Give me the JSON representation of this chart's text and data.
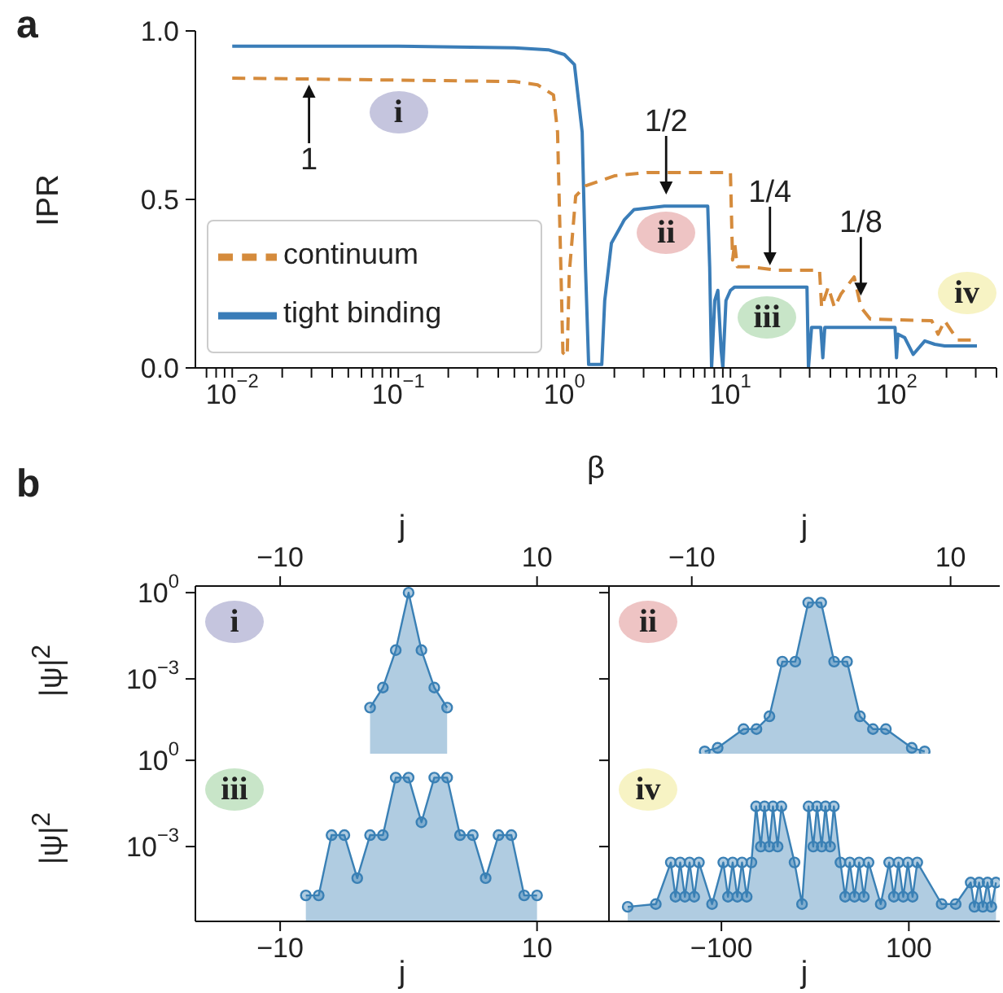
{
  "chart_data": [
    {
      "type": "line",
      "title": "a",
      "xlabel": "β",
      "ylabel": "IPR",
      "log": "x",
      "xlim": [
        0.006,
        400
      ],
      "xticks": [
        {
          "value": 0.007,
          "label": null
        },
        {
          "value": 0.008,
          "label": null
        },
        {
          "value": 0.009,
          "label": null
        },
        {
          "value": 0.01,
          "label": "10$^{−2}$"
        },
        {
          "value": 0.02,
          "label": null
        },
        {
          "value": 0.03,
          "label": null
        },
        {
          "value": 0.04,
          "label": null
        },
        {
          "value": 0.05,
          "label": null
        },
        {
          "value": 0.06,
          "label": null
        },
        {
          "value": 0.07,
          "label": null
        },
        {
          "value": 0.08,
          "label": null
        },
        {
          "value": 0.09,
          "label": null
        },
        {
          "value": 0.1,
          "label": "10$^{−1}$"
        },
        {
          "value": 0.2,
          "label": null
        },
        {
          "value": 0.3,
          "label": null
        },
        {
          "value": 0.4,
          "label": null
        },
        {
          "value": 0.5,
          "label": null
        },
        {
          "value": 0.6,
          "label": null
        },
        {
          "value": 0.7,
          "label": null
        },
        {
          "value": 0.8,
          "label": null
        },
        {
          "value": 0.9,
          "label": null
        },
        {
          "value": 1,
          "label": "10$^{0}$"
        },
        {
          "value": 2,
          "label": null
        },
        {
          "value": 3,
          "label": null
        },
        {
          "value": 4,
          "label": null
        },
        {
          "value": 5,
          "label": null
        },
        {
          "value": 6,
          "label": null
        },
        {
          "value": 7,
          "label": null
        },
        {
          "value": 8,
          "label": null
        },
        {
          "value": 9,
          "label": null
        },
        {
          "value": 10,
          "label": "10$^{1}$"
        },
        {
          "value": 20,
          "label": null
        },
        {
          "value": 30,
          "label": null
        },
        {
          "value": 40,
          "label": null
        },
        {
          "value": 50,
          "label": null
        },
        {
          "value": 60,
          "label": null
        },
        {
          "value": 70,
          "label": null
        },
        {
          "value": 80,
          "label": null
        },
        {
          "value": 90,
          "label": null
        },
        {
          "value": 100,
          "label": "10$^{2}$"
        },
        {
          "value": 200,
          "label": null
        },
        {
          "value": 300,
          "label": null
        },
        {
          "value": 400,
          "label": null
        }
      ],
      "ylim": [
        0,
        1
      ],
      "yticks": [
        {
          "value": 0,
          "label": "0.0"
        },
        {
          "value": 0.5,
          "label": "0.5"
        },
        {
          "value": 1,
          "label": "1.0"
        }
      ],
      "legend": "bottom left",
      "series": [
        {
          "name": "tight binding",
          "color": "#3a7db8",
          "line_style": "solid",
          "x": [
            0.01,
            0.1,
            0.5,
            0.8,
            1.0,
            1.15,
            1.28,
            1.34,
            1.4,
            1.68,
            1.75,
            1.92,
            2.3,
            2.63,
            4,
            7.3,
            7.5,
            7.7,
            8.05,
            8.4,
            8.8,
            9.0,
            9.4,
            10.0,
            10.6,
            20,
            28.9,
            29.5,
            30.8,
            35,
            36,
            37,
            60,
            98,
            100,
            102,
            112,
            126,
            148,
            170,
            195,
            305
          ],
          "values": [
            0.955,
            0.955,
            0.95,
            0.944,
            0.93,
            0.9,
            0.7,
            0.3,
            0.01,
            0.01,
            0.2,
            0.37,
            0.44,
            0.47,
            0.48,
            0.48,
            0.3,
            0,
            0.2,
            0.23,
            0.05,
            0,
            0.2,
            0.23,
            0.24,
            0.24,
            0.24,
            0,
            0.12,
            0.12,
            0.03,
            0.12,
            0.12,
            0.12,
            0.03,
            0.1,
            0.09,
            0.04,
            0.08,
            0.07,
            0.065,
            0.065
          ]
        },
        {
          "name": "continuum",
          "color": "#d58b3c",
          "line_style": "dashed",
          "x": [
            0.01,
            0.5,
            0.69,
            0.86,
            0.91,
            0.95,
            0.98,
            1.04,
            1.07,
            1.17,
            1.34,
            2.0,
            3.15,
            10,
            10.3,
            10.6,
            11,
            13.2,
            18.9,
            34.4,
            35.4,
            38.8,
            42.3,
            46.4,
            55.6,
            61,
            69.5,
            163,
            178,
            195,
            233,
            305
          ],
          "values": [
            0.86,
            0.85,
            0.84,
            0.81,
            0.7,
            0.32,
            0.045,
            0.035,
            0.28,
            0.51,
            0.54,
            0.57,
            0.58,
            0.58,
            0.32,
            0.37,
            0.3,
            0.3,
            0.29,
            0.29,
            0.18,
            0.24,
            0.18,
            0.22,
            0.27,
            0.18,
            0.145,
            0.14,
            0.1,
            0.14,
            0.083,
            0.083
          ]
        }
      ],
      "annotations": [
        {
          "text": "1",
          "x": 0.029,
          "y": 0.86
        },
        {
          "text": "1/2",
          "x": 4.1,
          "y": 0.5
        },
        {
          "text": "1/4",
          "x": 17.3,
          "y": 0.29
        },
        {
          "text": "1/8",
          "x": 61,
          "y": 0.2
        },
        {
          "text": "i",
          "x": 0.1,
          "y": 0.76
        },
        {
          "text": "ii",
          "x": 4.1,
          "y": 0.4
        },
        {
          "text": "iii",
          "x": 16.6,
          "y": 0.15
        },
        {
          "text": "iv",
          "x": 265,
          "y": 0.22
        }
      ]
    },
    {
      "type": "area",
      "title": "b",
      "marker": "circle",
      "log": true,
      "xlabel": "j",
      "ylabel": "|ψ|$^{2}$",
      "xlim": [
        -16.6,
        15.6
      ],
      "xticks": [
        {
          "value": -10,
          "label": "−10"
        },
        {
          "value": 10,
          "label": "10"
        }
      ],
      "ylim": [
        2.5e-06,
        1.7
      ],
      "yticks": [
        {
          "value": 1,
          "label": "10$^{0}$"
        },
        {
          "value": 0.001,
          "label": "10$^{−3}$"
        }
      ],
      "annotations": [
        "i"
      ],
      "x": [
        -3,
        -2,
        -1,
        0,
        1,
        2,
        3
      ],
      "series": [
        {
          "color": "#3a80b5",
          "values": [
            0.0001,
            0.0005,
            0.01,
            1,
            0.01,
            0.0005,
            0.0001
          ]
        }
      ]
    },
    {
      "type": "area",
      "marker": "circle",
      "log": true,
      "xlabel": "j",
      "tick_labels": "x",
      "xlim": [
        -16.4,
        13.8
      ],
      "xticks": [
        {
          "value": -10,
          "label": "−10"
        },
        {
          "value": 10,
          "label": "10"
        }
      ],
      "ylim": [
        2.5e-06,
        1.7
      ],
      "yticks": [
        {
          "value": 1,
          "label": null
        },
        {
          "value": 0.001,
          "label": null
        }
      ],
      "annotations": [
        "ii"
      ],
      "x": [
        -9,
        -8,
        -6,
        -5,
        -4,
        -3,
        -2,
        -1,
        0,
        1,
        2,
        3,
        4,
        5,
        7,
        8
      ],
      "series": [
        {
          "color": "#3a80b5",
          "values": [
            3e-06,
            4e-06,
            1.8e-05,
            1.8e-05,
            5e-05,
            0.004,
            0.004,
            0.45,
            0.45,
            0.004,
            0.004,
            5e-05,
            1.8e-05,
            1.8e-05,
            4e-06,
            3e-06
          ]
        }
      ]
    },
    {
      "type": "area",
      "marker": "circle",
      "log": true,
      "xlabel": "j",
      "ylabel": "|ψ|$^{2}$",
      "xlim": [
        -16.6,
        15.6
      ],
      "xticks": [
        {
          "value": -10,
          "label": "−10"
        },
        {
          "value": 10,
          "label": "10"
        }
      ],
      "ylim": [
        2.5e-06,
        1.7
      ],
      "yticks": [
        {
          "value": 1,
          "label": "10$^{0}$"
        },
        {
          "value": 0.001,
          "label": "10$^{−3}$"
        }
      ],
      "annotations": [
        "iii"
      ],
      "x": [
        -8,
        -7,
        -6,
        -5,
        -4,
        -3,
        -2,
        -1,
        0,
        1,
        2,
        3,
        4,
        5,
        6,
        7,
        8,
        9,
        10
      ],
      "series": [
        {
          "color": "#3a80b5",
          "values": [
            2e-05,
            2e-05,
            0.0025,
            0.0025,
            8e-05,
            0.0025,
            0.0025,
            0.25,
            0.25,
            0.007,
            0.25,
            0.25,
            0.0025,
            0.0025,
            8e-05,
            0.0025,
            0.0025,
            2e-05,
            2e-05
          ]
        }
      ]
    },
    {
      "type": "area",
      "marker": "circle",
      "log": true,
      "xlabel": "j",
      "tick_labels": "x",
      "xlim": [
        -220,
        197
      ],
      "xticks": [
        {
          "value": -100,
          "label": "−100"
        },
        {
          "value": 100,
          "label": "100"
        }
      ],
      "ylim": [
        2.5e-06,
        1.7
      ],
      "yticks": [
        {
          "value": 1,
          "label": null
        },
        {
          "value": 0.001,
          "label": null
        }
      ],
      "annotations": [
        "iv"
      ],
      "x": [
        -200,
        -170,
        -154,
        -149,
        -144,
        -139,
        -134,
        -129,
        -124,
        -110,
        -98,
        -93,
        -88,
        -83,
        -78,
        -73,
        -68,
        -63,
        -58,
        -54,
        -49,
        -45,
        -40,
        -36,
        -22,
        -14,
        -7,
        -2,
        2,
        7,
        11,
        16,
        20,
        27,
        32,
        37,
        42,
        47,
        52,
        57,
        70,
        79,
        84,
        89,
        94,
        99,
        104,
        109,
        135,
        150,
        166,
        170,
        175,
        179,
        184,
        188,
        193
      ],
      "series": [
        {
          "color": "#3a80b5",
          "values": [
            8e-06,
            1e-05,
            0.00028,
            1.8e-05,
            0.00028,
            1.8e-05,
            0.00028,
            1.8e-05,
            0.00028,
            1e-05,
            0.00028,
            1.8e-05,
            0.00028,
            1.8e-05,
            0.00028,
            1.8e-05,
            0.00028,
            0.025,
            0.001,
            0.025,
            0.001,
            0.025,
            0.001,
            0.025,
            0.00028,
            1e-05,
            0.025,
            0.001,
            0.025,
            0.001,
            0.025,
            0.001,
            0.025,
            0.00028,
            1.8e-05,
            0.00028,
            1.8e-05,
            0.00028,
            1.8e-05,
            0.00028,
            1e-05,
            0.00028,
            1.8e-05,
            0.00028,
            1.8e-05,
            0.00028,
            1.8e-05,
            0.00028,
            1e-05,
            1e-05,
            5.6e-05,
            8e-06,
            5.6e-05,
            8e-06,
            5.6e-05,
            8e-06,
            5.6e-05
          ]
        }
      ]
    }
  ]
}
